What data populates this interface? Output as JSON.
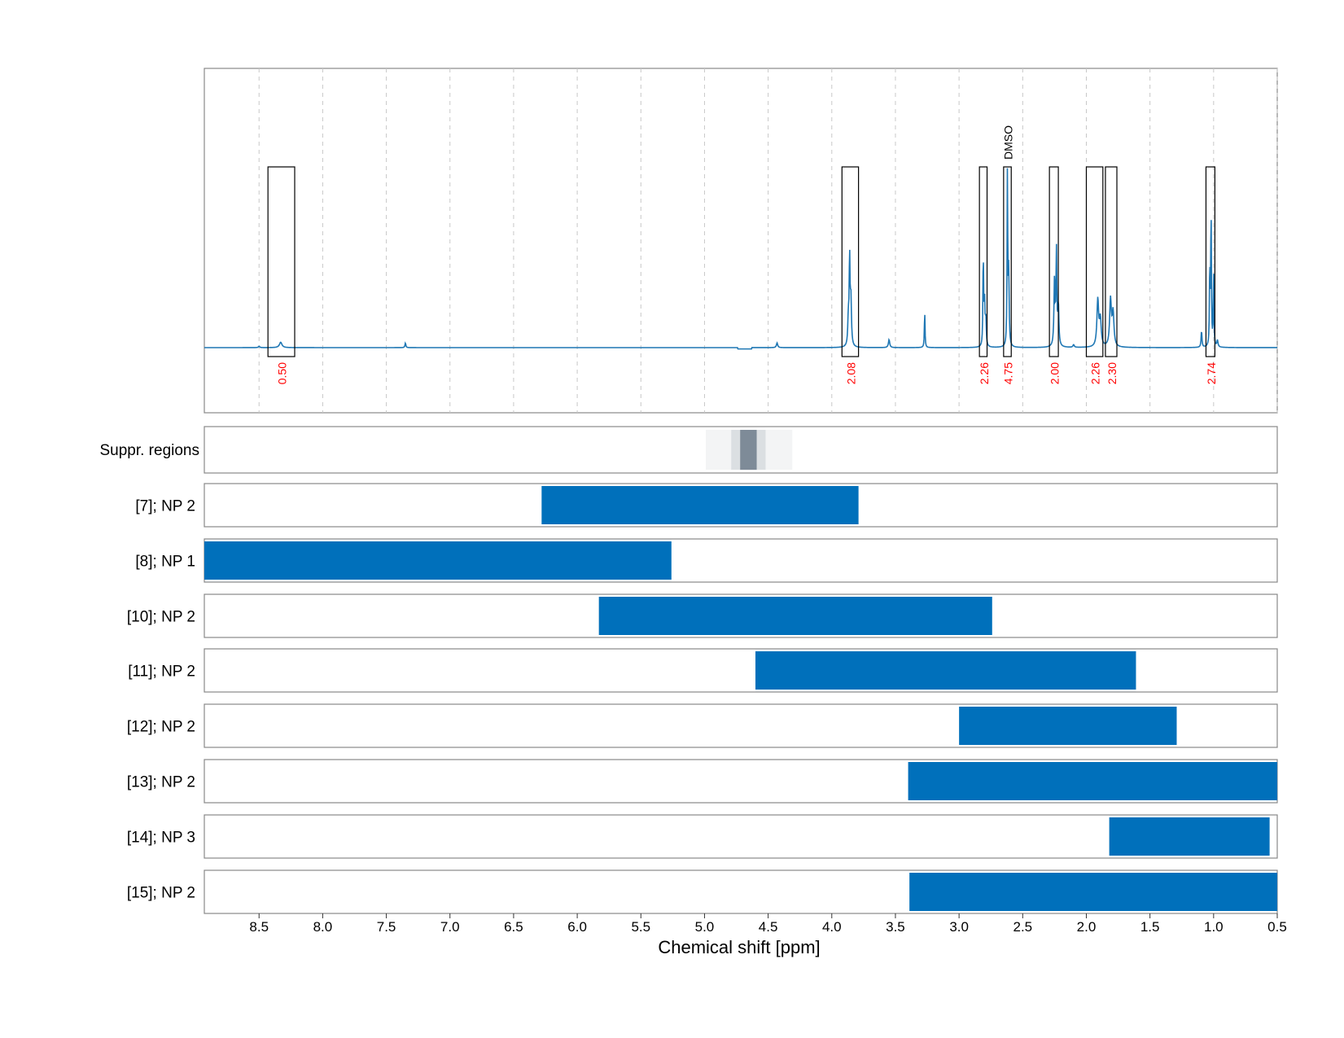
{
  "chart_data": {
    "type": "line",
    "xlabel": "Chemical shift [ppm]",
    "xlim": [
      8.93,
      0.5
    ],
    "x_ticks": [
      "8.5",
      "8.0",
      "7.5",
      "7.0",
      "6.5",
      "6.0",
      "5.5",
      "5.0",
      "4.5",
      "4.0",
      "3.5",
      "3.0",
      "2.5",
      "2.0",
      "1.5",
      "1.0",
      "0.5"
    ],
    "x_tick_values": [
      8.5,
      8.0,
      7.5,
      7.0,
      6.5,
      6.0,
      5.5,
      5.0,
      4.5,
      4.0,
      3.5,
      3.0,
      2.5,
      2.0,
      1.5,
      1.0,
      0.5
    ],
    "grid": true,
    "spectrum": {
      "color": "#1f77b4",
      "baseline": 0,
      "ylim": [
        -0.05,
        0.51
      ],
      "peaks": [
        {
          "ppm": 8.5,
          "height": 0.002,
          "width": 0.006
        },
        {
          "ppm": 8.33,
          "height": 0.008,
          "width": 0.012
        },
        {
          "ppm": 7.35,
          "height": 0.007,
          "width": 0.004
        },
        {
          "ppm": 4.43,
          "height": 0.007,
          "width": 0.006
        },
        {
          "ppm": 3.87,
          "height": 0.04,
          "width": 0.005
        },
        {
          "ppm": 3.86,
          "height": 0.13,
          "width": 0.004
        },
        {
          "ppm": 3.85,
          "height": 0.07,
          "width": 0.005
        },
        {
          "ppm": 3.55,
          "height": 0.012,
          "width": 0.006
        },
        {
          "ppm": 3.27,
          "height": 0.055,
          "width": 0.003
        },
        {
          "ppm": 2.81,
          "height": 0.14,
          "width": 0.003
        },
        {
          "ppm": 2.8,
          "height": 0.07,
          "width": 0.004
        },
        {
          "ppm": 2.79,
          "height": 0.04,
          "width": 0.004
        },
        {
          "ppm": 2.62,
          "height": 0.26,
          "width": 0.003
        },
        {
          "ppm": 2.61,
          "height": 0.11,
          "width": 0.004
        },
        {
          "ppm": 2.25,
          "height": 0.1,
          "width": 0.005
        },
        {
          "ppm": 2.235,
          "height": 0.14,
          "width": 0.004
        },
        {
          "ppm": 2.22,
          "height": 0.06,
          "width": 0.005
        },
        {
          "ppm": 2.1,
          "height": 0.004,
          "width": 0.006
        },
        {
          "ppm": 1.91,
          "height": 0.07,
          "width": 0.008
        },
        {
          "ppm": 1.89,
          "height": 0.04,
          "width": 0.008
        },
        {
          "ppm": 1.81,
          "height": 0.07,
          "width": 0.008
        },
        {
          "ppm": 1.79,
          "height": 0.05,
          "width": 0.008
        },
        {
          "ppm": 1.095,
          "height": 0.025,
          "width": 0.004
        },
        {
          "ppm": 1.03,
          "height": 0.12,
          "width": 0.003
        },
        {
          "ppm": 1.02,
          "height": 0.21,
          "width": 0.003
        },
        {
          "ppm": 1.0,
          "height": 0.11,
          "width": 0.003
        },
        {
          "ppm": 0.97,
          "height": 0.01,
          "width": 0.005
        }
      ]
    },
    "integration_regions": [
      {
        "from": 8.43,
        "to": 8.22,
        "value": "0.50"
      },
      {
        "from": 3.92,
        "to": 3.79,
        "value": "2.08"
      },
      {
        "from": 2.84,
        "to": 2.78,
        "value": "2.26"
      },
      {
        "from": 2.65,
        "to": 2.59,
        "value": "4.75"
      },
      {
        "from": 2.29,
        "to": 2.22,
        "value": "2.00"
      },
      {
        "from": 2.0,
        "to": 1.87,
        "value": "2.26"
      },
      {
        "from": 1.85,
        "to": 1.76,
        "value": "2.30"
      },
      {
        "from": 1.06,
        "to": 0.99,
        "value": "2.74"
      }
    ],
    "region_annotation": {
      "text": "DMSO",
      "ppm": 2.62
    },
    "suppression": {
      "label": "Suppr. regions",
      "bands": [
        {
          "from": 4.99,
          "to": 4.31,
          "level": 0.25
        },
        {
          "from": 4.79,
          "to": 4.52,
          "level": 0.5
        },
        {
          "from": 4.72,
          "to": 4.59,
          "level": 0.9
        }
      ]
    },
    "range_rows": [
      {
        "label": "[7]; NP 2",
        "from": 6.28,
        "to": 3.79
      },
      {
        "label": "[8]; NP 1",
        "from": 8.93,
        "to": 5.26
      },
      {
        "label": "[10]; NP 2",
        "from": 5.83,
        "to": 2.74
      },
      {
        "label": "[11]; NP 2",
        "from": 4.6,
        "to": 1.61
      },
      {
        "label": "[12]; NP 2",
        "from": 3.0,
        "to": 1.29
      },
      {
        "label": "[13]; NP 2",
        "from": 3.4,
        "to": 0.5
      },
      {
        "label": "[14]; NP 3",
        "from": 1.82,
        "to": 0.56
      },
      {
        "label": "[15]; NP 2",
        "from": 3.39,
        "to": 0.5
      }
    ],
    "colors": {
      "spectrum": "#1f77b4",
      "range_bar": "#0070bb",
      "integral_text": "#ff0000",
      "suppr_base": "#5a6b7c",
      "grid": "#c8c8c8",
      "frame": "#888888"
    }
  }
}
